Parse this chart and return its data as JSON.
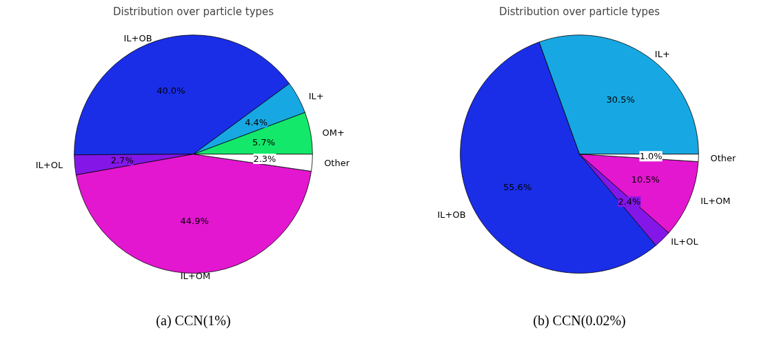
{
  "chart_data": [
    {
      "type": "pie",
      "title": "Distribution over particle types",
      "categories": [
        "OM+",
        "IL+",
        "IL+OB",
        "IL+OL",
        "IL+OM",
        "Other"
      ],
      "values": [
        5.7,
        4.4,
        40.0,
        2.7,
        44.9,
        2.3
      ],
      "colors": [
        "#14e86a",
        "#17a8e3",
        "#1a2ee8",
        "#8417e8",
        "#e317d0",
        "#ffffff"
      ],
      "value_labels": [
        "5.7%",
        "4.4%",
        "40.0%",
        "2.7%",
        "44.9%",
        "2.3%"
      ],
      "annotations": [
        "(a) CCN(1%)"
      ]
    },
    {
      "type": "pie",
      "title": "Distribution over particle types",
      "categories": [
        "IL+",
        "IL+OB",
        "IL+OL",
        "IL+OM",
        "Other"
      ],
      "values": [
        30.5,
        55.6,
        2.4,
        10.5,
        1.0
      ],
      "colors": [
        "#17a8e3",
        "#1a2ee8",
        "#8417e8",
        "#e317d0",
        "#ffffff"
      ],
      "value_labels": [
        "30.5%",
        "55.6%",
        "2.4%",
        "10.5%",
        "1.0%"
      ],
      "annotations": [
        "(b) CCN(0.02%)"
      ]
    }
  ]
}
